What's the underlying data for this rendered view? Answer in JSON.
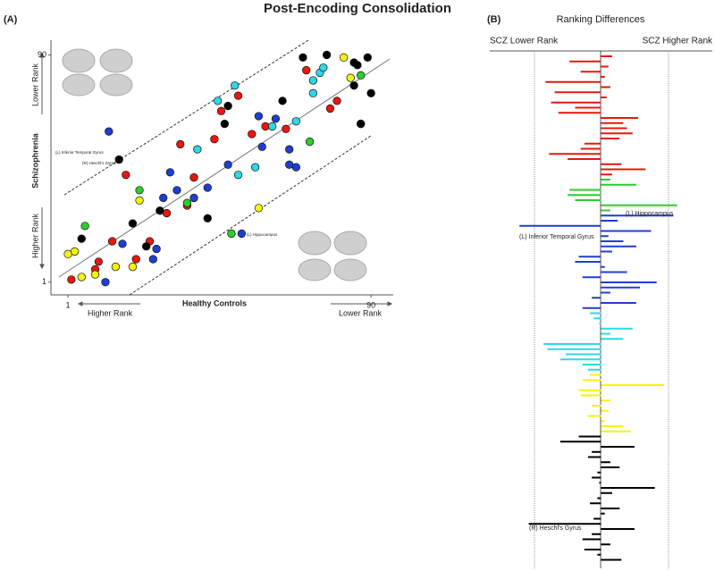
{
  "title": "Post-Encoding Consolidation",
  "chart_data": [
    {
      "type": "scatter",
      "panel": "(A)",
      "xlabel": "Healthy Controls",
      "ylabel": "Schizophrenia",
      "x_rank_labels": [
        "Higher Rank",
        "Lower Rank"
      ],
      "y_rank_labels": [
        "Higher Rank",
        "Lower Rank"
      ],
      "xlim": [
        -4,
        96
      ],
      "ylim": [
        -4,
        94
      ],
      "xticks": [
        1,
        90
      ],
      "yticks": [
        1,
        90
      ],
      "annotations": [
        "(L) Inferior Temporal Gyrus",
        "(R) Heschl's Gyrus",
        "(L) Hippocampus"
      ],
      "series": [
        {
          "color": "#e8170f",
          "x": [
            2,
            10,
            9,
            14,
            21,
            25,
            18,
            30,
            34,
            38,
            36,
            44,
            46,
            51,
            55,
            59,
            65,
            71,
            78,
            80
          ],
          "y": [
            2,
            9,
            6,
            17,
            10,
            17,
            43,
            28,
            55,
            42,
            31,
            57,
            68,
            74,
            59,
            62,
            61,
            84,
            69,
            72
          ]
        },
        {
          "color": "#2ecc2e",
          "x": [
            6,
            22,
            36,
            49,
            72,
            87
          ],
          "y": [
            23,
            37,
            32,
            20,
            56,
            82
          ]
        },
        {
          "color": "#1f3fd0",
          "x": [
            13,
            17,
            12,
            26,
            27,
            31,
            29,
            38,
            42,
            33,
            48,
            52,
            57,
            58,
            66,
            66,
            68,
            62,
            87
          ],
          "y": [
            60,
            16,
            1,
            10,
            14,
            44,
            34,
            34,
            38,
            37,
            47,
            20,
            66,
            54,
            53,
            47,
            46,
            65,
            63
          ]
        },
        {
          "color": "#2fd7e8",
          "x": [
            45,
            50,
            39,
            51,
            56,
            61,
            68,
            73,
            75,
            76,
            73
          ],
          "y": [
            72,
            78,
            53,
            43,
            46,
            62,
            64,
            80,
            83,
            85,
            75
          ]
        },
        {
          "color": "#f5f50a",
          "x": [
            1,
            3,
            5,
            9,
            15,
            20,
            22,
            57,
            82,
            84
          ],
          "y": [
            12,
            13,
            3,
            4,
            7,
            7,
            33,
            30,
            89,
            81
          ]
        },
        {
          "color": "#000000",
          "x": [
            5,
            16,
            24,
            28,
            20,
            42,
            47,
            48,
            64,
            70,
            77,
            85,
            89,
            90,
            85,
            87,
            86
          ],
          "y": [
            18,
            49,
            15,
            29,
            24,
            26,
            63,
            70,
            72,
            89,
            90,
            87,
            89,
            75,
            78,
            63,
            86
          ]
        }
      ]
    },
    {
      "type": "bar",
      "panel": "(B)",
      "orientation": "horizontal",
      "title": "Ranking Differences",
      "axis_labels": [
        "SCZ Lower Rank",
        "SCZ Higher Rank"
      ],
      "xlim": [
        -60,
        60
      ],
      "annotations": [
        "(L) Hippocampus",
        "(L) Inferior Temporal Gyrus",
        "(R) Heschl's Gyrus"
      ],
      "series": [
        {
          "color": "#e8170f",
          "values": [
            6,
            -17,
            4,
            -11,
            2,
            -30,
            5,
            -25,
            3,
            -27,
            -14,
            -23,
            20,
            12,
            14,
            17,
            10,
            -9,
            -11,
            -28,
            -18,
            11,
            24,
            6
          ]
        },
        {
          "color": "#2ecc2e",
          "values": [
            5,
            19,
            -17,
            -18,
            -14,
            41,
            5
          ]
        },
        {
          "color": "#1f3fd0",
          "values": [
            39,
            9,
            -44,
            27,
            4,
            12,
            19,
            6,
            -12,
            -14,
            2,
            14,
            -10,
            30,
            21,
            5,
            -5,
            19,
            -10
          ]
        },
        {
          "color": "#2fd7e8",
          "values": [
            -6,
            -4,
            -1,
            17,
            5,
            12,
            -31,
            -29,
            -19,
            -22,
            -10,
            -7
          ]
        },
        {
          "color": "#f5f50a",
          "values": [
            -6,
            -10,
            34,
            -12,
            -11,
            5,
            -5,
            4,
            -7,
            2,
            12,
            16
          ]
        },
        {
          "color": "#000000",
          "values": [
            -12,
            -22,
            18,
            -5,
            -7,
            5,
            10,
            -2,
            -5,
            -1,
            29,
            6,
            -2,
            -6,
            10,
            2,
            -4,
            -39,
            18,
            -5,
            -10,
            5,
            -9,
            -2,
            11
          ]
        }
      ]
    }
  ]
}
